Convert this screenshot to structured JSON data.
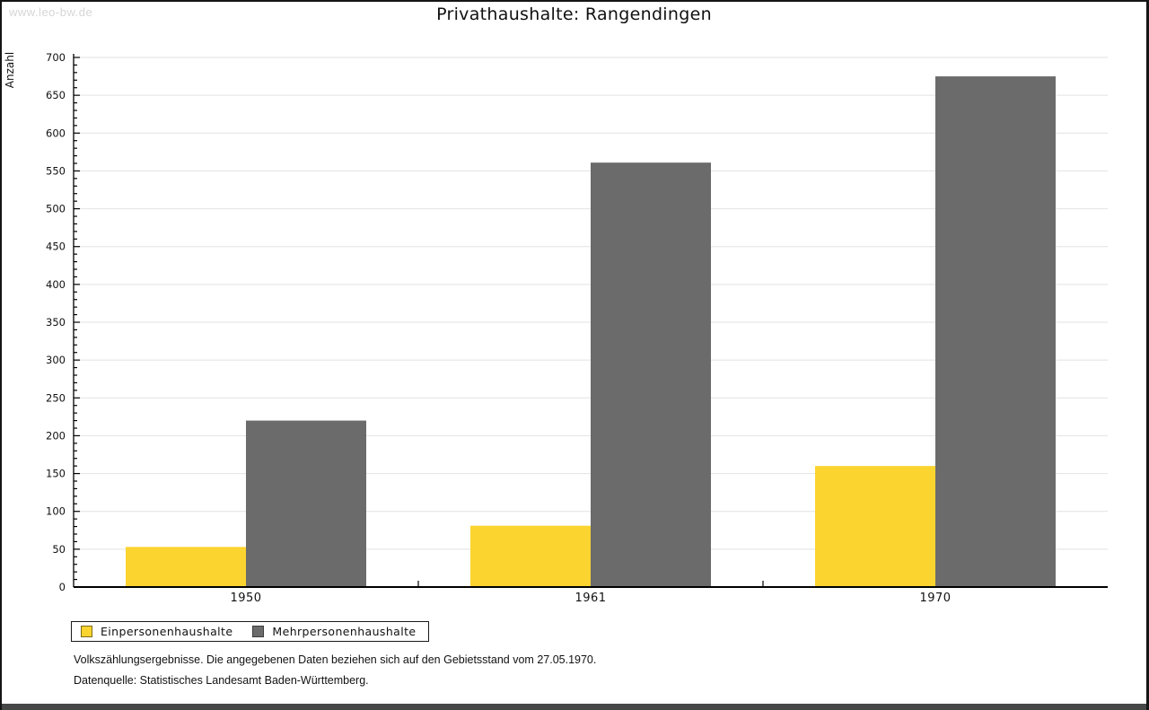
{
  "watermark": "www.leo-bw.de",
  "footer": {
    "line1": "Volkszählungsergebnisse. Die angegebenen Daten beziehen sich auf den Gebietsstand vom 27.05.1970.",
    "line2": "Datenquelle: Statistisches Landesamt Baden-Württemberg."
  },
  "chart_data": {
    "type": "bar",
    "title": "Privathaushalte: Rangendingen",
    "xlabel": "",
    "ylabel": "Anzahl",
    "categories": [
      "1950",
      "1961",
      "1970"
    ],
    "series": [
      {
        "name": "Einpersonenhaushalte",
        "color": "#fcd430",
        "border": "#7e6a1a",
        "values": [
          53,
          81,
          160
        ]
      },
      {
        "name": "Mehrpersonenhaushalte",
        "color": "#6b6b6b",
        "border": "#3d3d3d",
        "values": [
          220,
          561,
          675
        ]
      }
    ],
    "ylim": [
      0,
      700
    ],
    "ytick_step": 50,
    "minor_tick_step": 10,
    "grid": true,
    "gridline_color": "#e2e2e2",
    "axis_color": "#000000",
    "legend_position": "bottom-left"
  }
}
